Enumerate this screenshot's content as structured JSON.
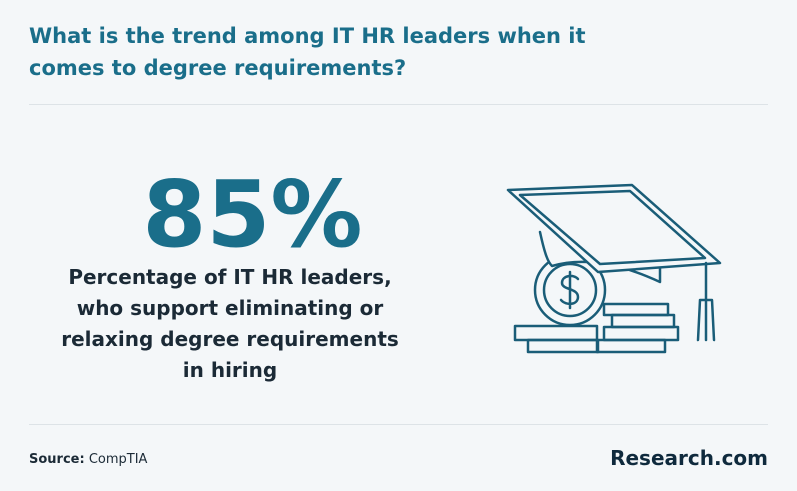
{
  "header": {
    "title": "What is the trend among IT HR leaders when it comes to degree requirements?"
  },
  "stat": {
    "value": "85%",
    "description": "Percentage of IT HR leaders, who support eliminating or relaxing degree requirements in hiring"
  },
  "footer": {
    "source_label": "Source:",
    "source": "CompTIA",
    "brand": "Research.com"
  }
}
